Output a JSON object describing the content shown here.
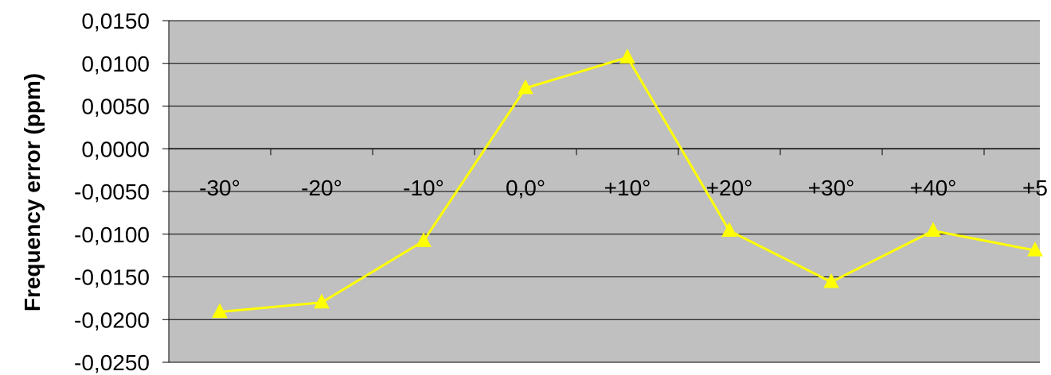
{
  "chart_data": {
    "type": "line",
    "ylabel": "Frequency error (ppm)",
    "xlabel": "",
    "title": "",
    "categories": [
      "-30°",
      "-20°",
      "-10°",
      "0,0°",
      "+10°",
      "+20°",
      "+30°",
      "+40°",
      "+5"
    ],
    "series": [
      {
        "values": [
          -0.0191,
          -0.018,
          -0.0108,
          0.0071,
          0.0107,
          -0.0096,
          -0.0156,
          -0.0096,
          -0.0119
        ]
      }
    ],
    "ylim": [
      -0.025,
      0.015
    ],
    "yticks": [
      "0,0150",
      "0,0100",
      "0,0050",
      "0,0000",
      "-0,0050",
      "-0,0100",
      "-0,0150",
      "-0,0200",
      "-0,0250"
    ],
    "ytick_values": [
      0.015,
      0.01,
      0.005,
      0,
      -0.005,
      -0.01,
      -0.015,
      -0.02,
      -0.025
    ],
    "grid": true,
    "legend": "none",
    "colors": {
      "plot_background": "#c0c0c0",
      "gridline": "#000000",
      "series": "#ffff00"
    },
    "marker": "triangle"
  }
}
